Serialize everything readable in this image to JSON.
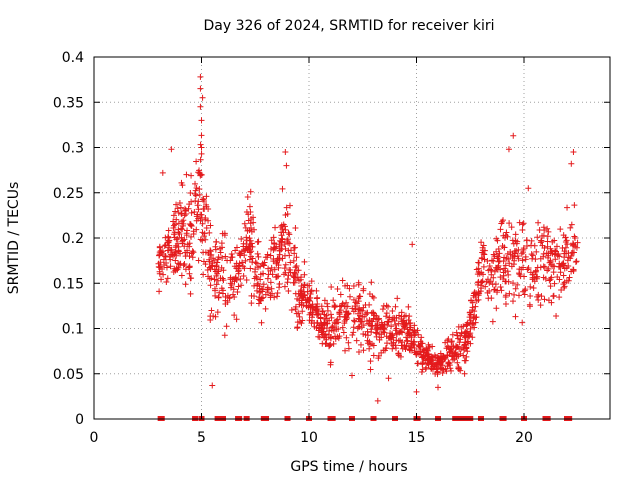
{
  "chart_data": {
    "type": "scatter",
    "title": "Day 326 of 2024, SRMTID for receiver kiri",
    "xlabel": "GPS time / hours",
    "ylabel": "SRMTID / TECUs",
    "xlim": [
      0,
      24
    ],
    "ylim": [
      0,
      0.4
    ],
    "x_ticks": [
      0,
      5,
      10,
      15,
      20
    ],
    "y_ticks": [
      0,
      0.05,
      0.1,
      0.15,
      0.2,
      0.25,
      0.3,
      0.35,
      0.4
    ],
    "x_tick_labels": [
      "0",
      "5",
      "10",
      "15",
      "20"
    ],
    "y_tick_labels": [
      "0",
      "0.05",
      "0.1",
      "0.15",
      "0.2",
      "0.25",
      "0.3",
      "0.35",
      "0.4"
    ],
    "grid": true,
    "marker": "+",
    "series_color": "#e41a1c",
    "trend": [
      [
        3.0,
        0.17
      ],
      [
        3.5,
        0.19
      ],
      [
        4.0,
        0.2
      ],
      [
        4.5,
        0.2
      ],
      [
        4.8,
        0.24
      ],
      [
        5.0,
        0.26
      ],
      [
        5.5,
        0.15
      ],
      [
        6.0,
        0.16
      ],
      [
        6.5,
        0.15
      ],
      [
        7.2,
        0.2
      ],
      [
        7.8,
        0.14
      ],
      [
        8.5,
        0.17
      ],
      [
        9.0,
        0.2
      ],
      [
        9.5,
        0.14
      ],
      [
        10.0,
        0.13
      ],
      [
        10.5,
        0.11
      ],
      [
        11.0,
        0.1
      ],
      [
        11.5,
        0.12
      ],
      [
        12.0,
        0.12
      ],
      [
        12.5,
        0.11
      ],
      [
        13.0,
        0.1
      ],
      [
        13.5,
        0.1
      ],
      [
        14.0,
        0.1
      ],
      [
        14.5,
        0.1
      ],
      [
        15.0,
        0.08
      ],
      [
        15.5,
        0.065
      ],
      [
        16.0,
        0.06
      ],
      [
        16.5,
        0.07
      ],
      [
        17.0,
        0.08
      ],
      [
        17.5,
        0.1
      ],
      [
        18.0,
        0.17
      ],
      [
        18.5,
        0.15
      ],
      [
        19.0,
        0.18
      ],
      [
        19.5,
        0.17
      ],
      [
        20.0,
        0.17
      ],
      [
        20.5,
        0.17
      ],
      [
        21.0,
        0.18
      ],
      [
        21.5,
        0.16
      ],
      [
        22.0,
        0.18
      ],
      [
        22.5,
        0.19
      ]
    ],
    "spread": [
      [
        3.0,
        0.03
      ],
      [
        4.5,
        0.045
      ],
      [
        5.0,
        0.06
      ],
      [
        6.0,
        0.035
      ],
      [
        8.0,
        0.04
      ],
      [
        9.0,
        0.045
      ],
      [
        10.0,
        0.02
      ],
      [
        11.0,
        0.025
      ],
      [
        12.0,
        0.03
      ],
      [
        13.0,
        0.03
      ],
      [
        14.0,
        0.03
      ],
      [
        15.0,
        0.015
      ],
      [
        16.0,
        0.012
      ],
      [
        17.0,
        0.02
      ],
      [
        18.0,
        0.03
      ],
      [
        19.0,
        0.04
      ],
      [
        20.0,
        0.045
      ],
      [
        21.0,
        0.035
      ],
      [
        22.5,
        0.035
      ]
    ],
    "outliers": [
      {
        "x": 4.95,
        "y": 0.378
      },
      {
        "x": 4.95,
        "y": 0.365
      },
      {
        "x": 4.95,
        "y": 0.345
      },
      {
        "x": 5.0,
        "y": 0.33
      },
      {
        "x": 5.05,
        "y": 0.355
      },
      {
        "x": 3.2,
        "y": 0.272
      },
      {
        "x": 3.6,
        "y": 0.298
      },
      {
        "x": 4.3,
        "y": 0.27
      },
      {
        "x": 5.0,
        "y": 0.3
      },
      {
        "x": 8.9,
        "y": 0.295
      },
      {
        "x": 8.95,
        "y": 0.28
      },
      {
        "x": 19.5,
        "y": 0.313
      },
      {
        "x": 19.3,
        "y": 0.298
      },
      {
        "x": 22.3,
        "y": 0.295
      },
      {
        "x": 22.2,
        "y": 0.282
      },
      {
        "x": 20.2,
        "y": 0.255
      },
      {
        "x": 14.8,
        "y": 0.193
      },
      {
        "x": 13.2,
        "y": 0.02
      },
      {
        "x": 5.5,
        "y": 0.037
      },
      {
        "x": 12.0,
        "y": 0.048
      },
      {
        "x": 15.0,
        "y": 0.03
      },
      {
        "x": 16.0,
        "y": 0.035
      },
      {
        "x": 13.7,
        "y": 0.045
      },
      {
        "x": 11.0,
        "y": 0.06
      }
    ],
    "point_count": 1600,
    "baseline_marks": {
      "y": 0,
      "x": [
        3.1,
        3.15,
        4.7,
        5.0,
        5.75,
        6.0,
        6.7,
        6.75,
        7.1,
        7.9,
        8.0,
        9.0,
        10.0,
        11.0,
        11.1,
        12.0,
        13.0,
        14.0,
        15.0,
        15.05,
        16.0,
        16.8,
        16.9,
        17.0,
        17.1,
        17.3,
        17.5,
        18.0,
        19.0,
        19.05,
        20.0,
        21.0,
        21.1,
        22.0,
        22.1
      ]
    }
  }
}
